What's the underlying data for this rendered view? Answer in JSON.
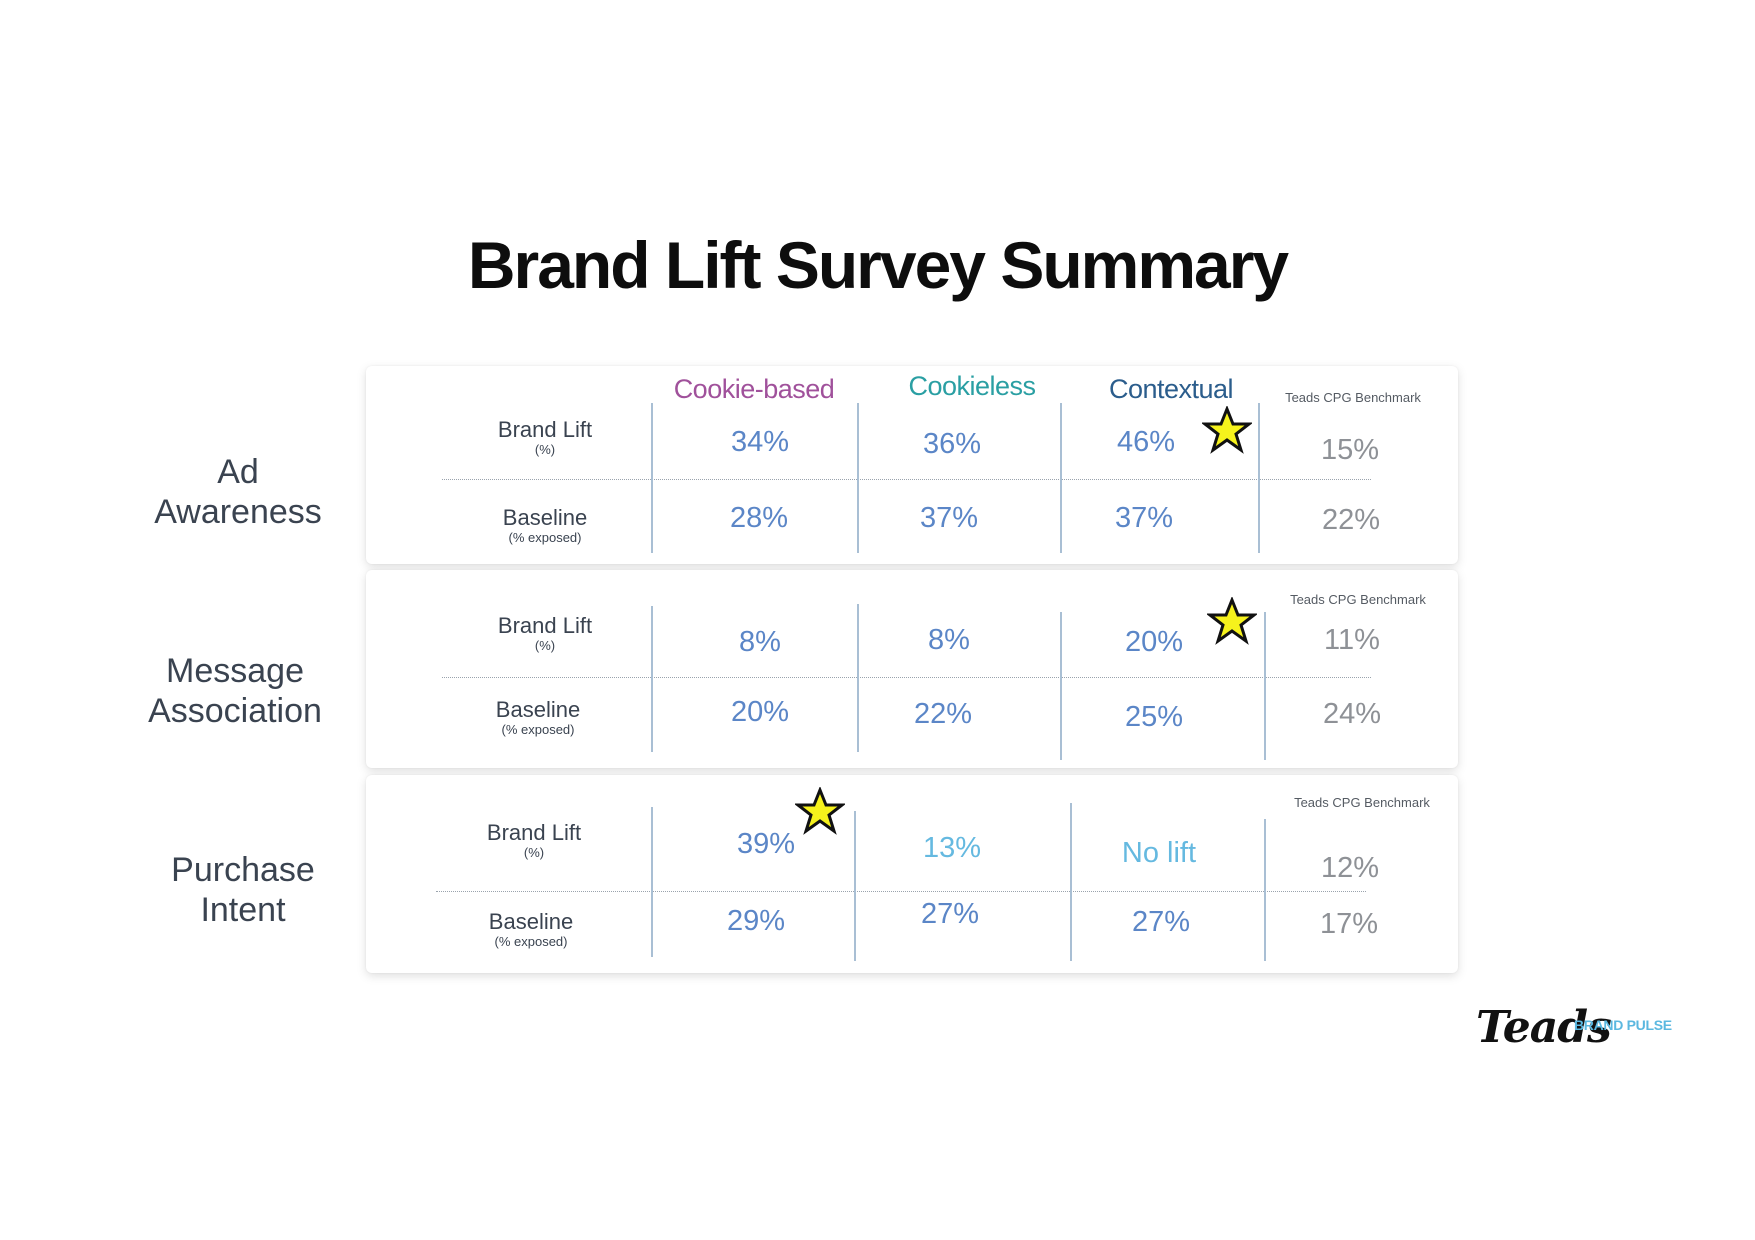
{
  "title": "Brand Lift Survey Summary",
  "colors": {
    "cookie_based": "#a0519b",
    "cookieless": "#2a9fa3",
    "contextual": "#2b5d8c",
    "value_blue": "#5b86c7",
    "value_light": "#65b9e0",
    "benchmark": "#8e9196",
    "star_fill": "#f6f21c"
  },
  "chart_data": {
    "type": "table",
    "title": "Brand Lift Survey Summary",
    "columns": [
      "Cookie-based",
      "Cookieless",
      "Contextual",
      "Teads CPG Benchmark"
    ],
    "sections": [
      {
        "metric": "Ad Awareness",
        "rows": [
          {
            "label": "Brand Lift",
            "sublabel": "(%)",
            "values": [
              "34%",
              "36%",
              "46%",
              "15%"
            ],
            "starred": "Contextual"
          },
          {
            "label": "Baseline",
            "sublabel": "(% exposed)",
            "values": [
              "28%",
              "37%",
              "37%",
              "22%"
            ]
          }
        ]
      },
      {
        "metric": "Message Association",
        "rows": [
          {
            "label": "Brand Lift",
            "sublabel": "(%)",
            "values": [
              "8%",
              "8%",
              "20%",
              "11%"
            ],
            "starred": "Contextual"
          },
          {
            "label": "Baseline",
            "sublabel": "(% exposed)",
            "values": [
              "20%",
              "22%",
              "25%",
              "24%"
            ]
          }
        ]
      },
      {
        "metric": "Purchase Intent",
        "rows": [
          {
            "label": "Brand Lift",
            "sublabel": "(%)",
            "values": [
              "39%",
              "13%",
              "No lift",
              "12%"
            ],
            "starred": "Cookie-based"
          },
          {
            "label": "Baseline",
            "sublabel": "(% exposed)",
            "values": [
              "29%",
              "27%",
              "27%",
              "17%"
            ]
          }
        ]
      }
    ]
  },
  "labels": {
    "metric_1_line1": "Ad",
    "metric_1_line2": "Awareness",
    "metric_2_line1": "Message",
    "metric_2_line2": "Association",
    "metric_3_line1": "Purchase",
    "metric_3_line2": "Intent",
    "brand_lift": "Brand Lift",
    "brand_lift_sub": "(%)",
    "baseline": "Baseline",
    "baseline_sub": "(% exposed)",
    "col_cookie": "Cookie-based",
    "col_cookieless": "Cookieless",
    "col_contextual": "Contextual",
    "benchmark": "Teads CPG Benchmark"
  },
  "values": {
    "s1": {
      "bl": [
        "34%",
        "36%",
        "46%",
        "15%"
      ],
      "base": [
        "28%",
        "37%",
        "37%",
        "22%"
      ]
    },
    "s2": {
      "bl": [
        "8%",
        "8%",
        "20%",
        "11%"
      ],
      "base": [
        "20%",
        "22%",
        "25%",
        "24%"
      ]
    },
    "s3": {
      "bl": [
        "39%",
        "13%",
        "No lift",
        "12%"
      ],
      "base": [
        "29%",
        "27%",
        "27%",
        "17%"
      ]
    }
  },
  "logo": {
    "main": "Teads",
    "sub": "BRAND PULSE"
  }
}
